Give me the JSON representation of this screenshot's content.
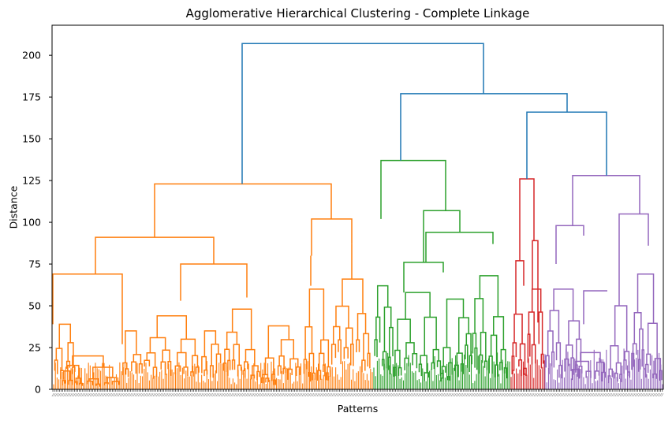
{
  "chart_data": {
    "type": "dendrogram",
    "title": "Agglomerative Hierarchical Clustering - Complete Linkage",
    "xlabel": "Patterns",
    "ylabel": "Distance",
    "ylim": [
      0,
      218
    ],
    "yticks": [
      0,
      25,
      50,
      75,
      100,
      125,
      150,
      175,
      200
    ],
    "ytick_labels": [
      "0",
      "25",
      "50",
      "75",
      "100",
      "125",
      "150",
      "175",
      "200"
    ],
    "leaf_count": 400,
    "colors": {
      "above_threshold": "#1f77b4",
      "cluster_1": "#ff7f0e",
      "cluster_2": "#2ca02c",
      "cluster_3": "#d62728",
      "cluster_4": "#9467bd"
    },
    "merges": [
      {
        "id": "root",
        "height": 207,
        "children": [
          "c1_top",
          "rest"
        ],
        "color": "above_threshold"
      },
      {
        "id": "rest",
        "height": 177,
        "children": [
          "c2_top",
          "rest2"
        ],
        "color": "above_threshold"
      },
      {
        "id": "rest2",
        "height": 166,
        "children": [
          "c3_top",
          "c4_top"
        ],
        "color": "above_threshold"
      },
      {
        "id": "c1_top",
        "height": 123,
        "children": [
          "c1_a",
          "c1_b"
        ],
        "color": "cluster_1"
      },
      {
        "id": "c1_a",
        "height": 91,
        "children": [
          "c1_a1",
          "c1_a2"
        ],
        "color": "cluster_1"
      },
      {
        "id": "c1_a1",
        "height": 69,
        "children": [
          "c1_a1l",
          "c1_a1r"
        ],
        "color": "cluster_1"
      },
      {
        "id": "c1_a1l",
        "height": 39,
        "children": [],
        "color": "cluster_1"
      },
      {
        "id": "c1_a1r",
        "height": 27,
        "children": [],
        "color": "cluster_1"
      },
      {
        "id": "c1_a2",
        "height": 75,
        "children": [
          "c1_a2l",
          "c1_a2r"
        ],
        "color": "cluster_1"
      },
      {
        "id": "c1_a2l",
        "height": 53,
        "children": [],
        "color": "cluster_1"
      },
      {
        "id": "c1_a2r",
        "height": 55,
        "children": [],
        "color": "cluster_1"
      },
      {
        "id": "c1_b",
        "height": 102,
        "children": [
          "c1_b1",
          "c1_b2"
        ],
        "color": "cluster_1"
      },
      {
        "id": "c1_b1",
        "height": 80,
        "children": [],
        "color": "cluster_1"
      },
      {
        "id": "c1_b2",
        "height": 87,
        "children": [],
        "color": "cluster_1"
      },
      {
        "id": "c2_top",
        "height": 137,
        "children": [
          "c2_a",
          "c2_b"
        ],
        "color": "cluster_2"
      },
      {
        "id": "c2_a",
        "height": 102,
        "children": [],
        "color": "cluster_2"
      },
      {
        "id": "c2_b",
        "height": 107,
        "children": [
          "c2_b1",
          "c2_b2"
        ],
        "color": "cluster_2"
      },
      {
        "id": "c2_b1",
        "height": 76,
        "children": [],
        "color": "cluster_2"
      },
      {
        "id": "c2_b2",
        "height": 94,
        "children": [
          "c2_b2l",
          "c2_b2r"
        ],
        "color": "cluster_2"
      },
      {
        "id": "c2_b2l",
        "height": 76,
        "children": [],
        "color": "cluster_2"
      },
      {
        "id": "c2_b2r",
        "height": 87,
        "children": [],
        "color": "cluster_2"
      },
      {
        "id": "c3_top",
        "height": 126,
        "children": [
          "c3_a",
          "c3_b"
        ],
        "color": "cluster_3"
      },
      {
        "id": "c3_a",
        "height": 77,
        "children": [],
        "color": "cluster_3"
      },
      {
        "id": "c3_b",
        "height": 89,
        "children": [],
        "color": "cluster_3"
      },
      {
        "id": "c4_top",
        "height": 128,
        "children": [
          "c4_a",
          "c4_b"
        ],
        "color": "cluster_4"
      },
      {
        "id": "c4_a",
        "height": 98,
        "children": [
          "c4_a1",
          "c4_a2"
        ],
        "color": "cluster_4"
      },
      {
        "id": "c4_a1",
        "height": 75,
        "children": [],
        "color": "cluster_4"
      },
      {
        "id": "c4_a2",
        "height": 92,
        "children": [],
        "color": "cluster_4"
      },
      {
        "id": "c4_b",
        "height": 105,
        "children": [
          "c4_b1",
          "c4_b2"
        ],
        "color": "cluster_4"
      },
      {
        "id": "c4_b1",
        "height": 50,
        "children": [],
        "color": "cluster_4"
      },
      {
        "id": "c4_b2",
        "height": 86,
        "children": [],
        "color": "cluster_4"
      }
    ],
    "clusters": [
      {
        "color": "cluster_1",
        "top_height": 123
      },
      {
        "color": "cluster_2",
        "top_height": 137
      },
      {
        "color": "cluster_3",
        "top_height": 126
      },
      {
        "color": "cluster_4",
        "top_height": 128
      }
    ]
  }
}
